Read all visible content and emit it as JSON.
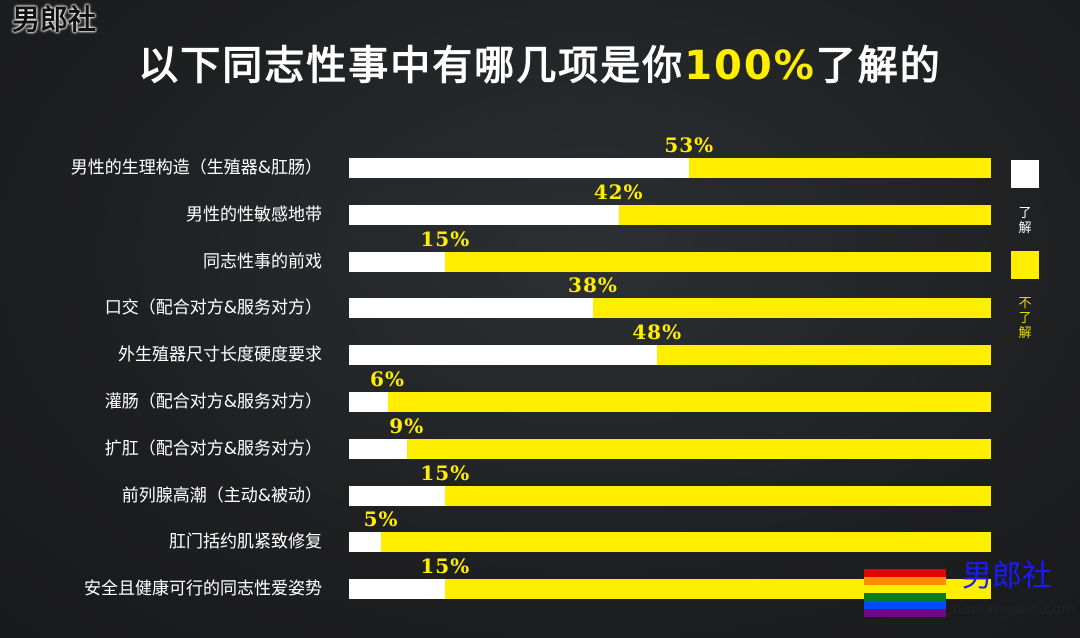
{
  "watermark": "男郎社",
  "chart_data": {
    "type": "bar",
    "stacked": true,
    "orientation": "horizontal",
    "title_parts": [
      "以下同志性事中有哪几项是你",
      "100%",
      "了解的"
    ],
    "categories": [
      "男性的生理构造（生殖器&肛肠）",
      "男性的性敏感地带",
      "同志性事的前戏",
      "口交（配合对方&服务对方）",
      "外生殖器尺寸长度硬度要求",
      "灌肠（配合对方&服务对方）",
      "扩肛（配合对方&服务对方）",
      "前列腺高潮（主动&被动）",
      "肛门括约肌紧致修复",
      "安全且健康可行的同志性爱姿势"
    ],
    "series": [
      {
        "name": "了解",
        "color": "#ffffff",
        "values": [
          53,
          42,
          15,
          38,
          48,
          6,
          9,
          15,
          5,
          15
        ]
      },
      {
        "name": "不了解",
        "color": "#ffee00",
        "values": [
          47,
          58,
          85,
          62,
          52,
          94,
          91,
          85,
          95,
          85
        ]
      }
    ],
    "data_labels": [
      "53%",
      "42%",
      "15%",
      "38%",
      "48%",
      "6%",
      "9%",
      "15%",
      "5%",
      "15%"
    ],
    "xlim": [
      0,
      100
    ],
    "legend_position": "right"
  },
  "logo": {
    "text": "男郎社",
    "url": "nanlangshe.com",
    "stripes": [
      "#e40303",
      "#ff8c00",
      "#ffed00",
      "#008026",
      "#004dff",
      "#750787"
    ]
  }
}
